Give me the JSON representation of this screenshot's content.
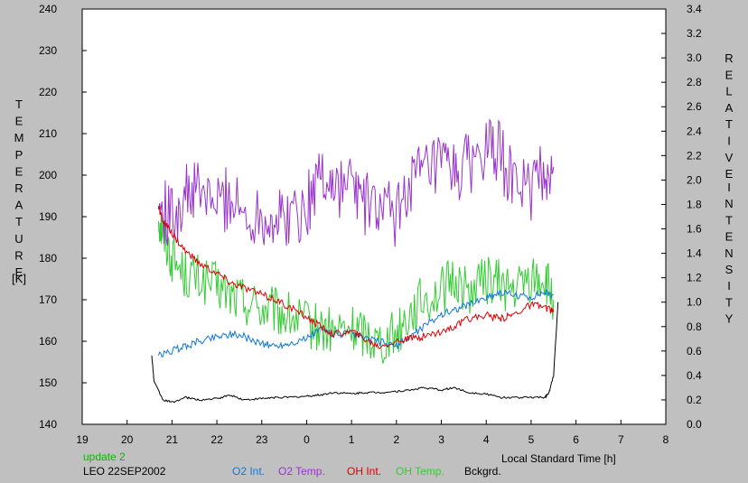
{
  "chart_data": {
    "type": "line",
    "xlabel": "Local Standard Time [h]",
    "x_ticks": [
      "19",
      "20",
      "21",
      "22",
      "23",
      "0",
      "1",
      "2",
      "3",
      "4",
      "5",
      "6",
      "7",
      "8"
    ],
    "xlim": [
      19,
      32
    ],
    "left_axis": {
      "label_letters": [
        "T",
        "E",
        "M",
        "P",
        "E",
        "R",
        "A",
        "T",
        "U",
        "R",
        "E"
      ],
      "unit": "[K]",
      "ylim": [
        140,
        240
      ],
      "ticks": [
        "140",
        "150",
        "160",
        "170",
        "180",
        "190",
        "200",
        "210",
        "220",
        "230",
        "240"
      ]
    },
    "right_axis": {
      "label_letters_1": [
        "R",
        "E",
        "L",
        "A",
        "T",
        "I",
        "V",
        "E"
      ],
      "label_letters_2": [
        "I",
        "N",
        "T",
        "E",
        "N",
        "S",
        "I",
        "T",
        "Y"
      ],
      "ylim": [
        0,
        3.4
      ],
      "ticks": [
        "0.0",
        "0.2",
        "0.4",
        "0.6",
        "0.8",
        "1.0",
        "1.2",
        "1.4",
        "1.6",
        "1.8",
        "2.0",
        "2.2",
        "2.4",
        "2.6",
        "2.8",
        "3.0",
        "3.2",
        "3.4"
      ]
    },
    "grid": false,
    "legend_placement": "bottom",
    "series": [
      {
        "name": "O2 Temp.",
        "axis": "left",
        "color": "#9933cc",
        "x": [
          20.7,
          21.0,
          21.3,
          21.6,
          22.0,
          22.3,
          22.6,
          23.0,
          23.3,
          23.6,
          24.0,
          24.3,
          24.6,
          25.0,
          25.3,
          25.6,
          26.0,
          26.3,
          26.6,
          27.0,
          27.3,
          27.6,
          28.0,
          28.3,
          28.6,
          29.0,
          29.3,
          29.5
        ],
        "y": [
          192,
          190,
          195,
          196,
          193,
          195,
          190,
          191,
          189,
          190,
          192,
          201,
          197,
          198,
          193,
          192,
          190,
          199,
          200,
          202,
          200,
          203,
          206,
          205,
          198,
          197,
          200,
          202
        ]
      },
      {
        "name": "OH Temp.",
        "axis": "left",
        "color": "#33cc33",
        "x": [
          20.7,
          20.8,
          21.0,
          21.3,
          21.6,
          22.0,
          22.3,
          22.6,
          23.0,
          23.3,
          23.6,
          24.0,
          24.3,
          24.6,
          25.0,
          25.3,
          25.6,
          26.0,
          26.3,
          26.6,
          27.0,
          27.3,
          27.6,
          28.0,
          28.3,
          28.6,
          29.0,
          29.3,
          29.5
        ],
        "y": [
          190,
          186,
          180,
          176,
          175,
          173,
          171,
          170,
          168,
          167,
          166,
          164,
          163,
          162,
          163,
          162,
          160,
          162,
          167,
          170,
          172,
          175,
          172,
          175,
          174,
          172,
          175,
          175,
          170
        ]
      },
      {
        "name": "O2 Int.",
        "axis": "right",
        "color": "#1177dd",
        "x": [
          20.7,
          21.0,
          21.3,
          21.6,
          22.0,
          22.3,
          22.6,
          23.0,
          23.3,
          23.6,
          24.0,
          24.3,
          24.6,
          25.0,
          25.3,
          25.6,
          26.0,
          26.3,
          26.6,
          27.0,
          27.3,
          27.6,
          28.0,
          28.3,
          28.6,
          29.0,
          29.3,
          29.5
        ],
        "y": [
          0.56,
          0.6,
          0.64,
          0.68,
          0.72,
          0.74,
          0.72,
          0.66,
          0.64,
          0.66,
          0.7,
          0.78,
          0.74,
          0.74,
          0.7,
          0.68,
          0.64,
          0.72,
          0.8,
          0.9,
          0.94,
          0.98,
          1.04,
          1.08,
          1.06,
          1.04,
          1.08,
          1.06
        ]
      },
      {
        "name": "OH Int.",
        "axis": "right",
        "color": "#dd0000",
        "x": [
          20.7,
          20.8,
          21.0,
          21.3,
          21.6,
          22.0,
          22.3,
          22.6,
          23.0,
          23.3,
          23.6,
          24.0,
          24.3,
          24.6,
          25.0,
          25.3,
          25.6,
          26.0,
          26.3,
          26.6,
          27.0,
          27.3,
          27.6,
          28.0,
          28.3,
          28.6,
          29.0,
          29.3,
          29.5
        ],
        "y": [
          1.78,
          1.66,
          1.56,
          1.42,
          1.32,
          1.24,
          1.16,
          1.12,
          1.06,
          1.02,
          0.96,
          0.88,
          0.8,
          0.74,
          0.76,
          0.7,
          0.64,
          0.68,
          0.7,
          0.72,
          0.76,
          0.8,
          0.86,
          0.9,
          0.86,
          0.9,
          0.98,
          0.96,
          0.92
        ]
      },
      {
        "name": "Bckgrd.",
        "axis": "right",
        "color": "#000000",
        "x": [
          20.55,
          20.6,
          20.8,
          21.0,
          21.3,
          21.6,
          22.0,
          22.3,
          22.6,
          23.0,
          23.3,
          23.6,
          24.0,
          24.3,
          24.6,
          25.0,
          25.3,
          25.6,
          26.0,
          26.3,
          26.6,
          27.0,
          27.3,
          27.6,
          28.0,
          28.3,
          28.6,
          29.0,
          29.3,
          29.4,
          29.5,
          29.6
        ],
        "y": [
          0.56,
          0.35,
          0.2,
          0.18,
          0.22,
          0.2,
          0.21,
          0.24,
          0.2,
          0.21,
          0.22,
          0.22,
          0.23,
          0.24,
          0.26,
          0.25,
          0.26,
          0.26,
          0.27,
          0.28,
          0.3,
          0.28,
          0.3,
          0.26,
          0.25,
          0.22,
          0.22,
          0.22,
          0.22,
          0.26,
          0.4,
          1.0
        ]
      }
    ]
  },
  "annotations": {
    "update": "update 2",
    "station": "LEO 22SEP2002"
  },
  "legend": [
    {
      "label": "O2 Int.",
      "color": "#1177dd"
    },
    {
      "label": "O2 Temp.",
      "color": "#9933cc"
    },
    {
      "label": "OH Int.",
      "color": "#dd0000"
    },
    {
      "label": "OH Temp.",
      "color": "#33cc33"
    },
    {
      "label": "Bckgrd.",
      "color": "#000000"
    }
  ],
  "colors": {
    "background": "#c0c0c0",
    "plot_background": "#ffffff",
    "update_text": "#00bb00"
  }
}
